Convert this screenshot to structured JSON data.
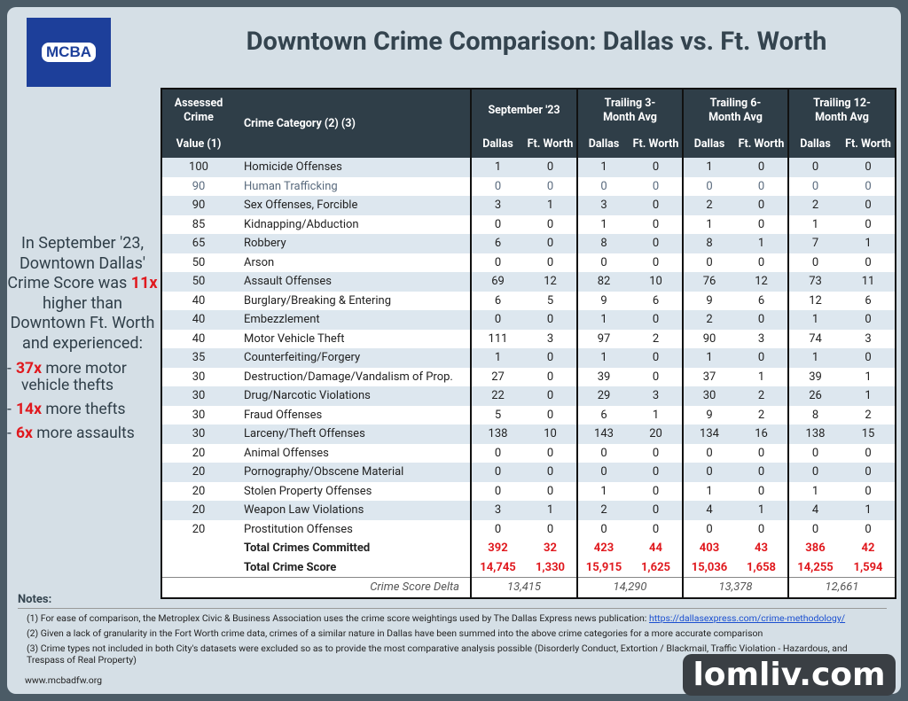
{
  "logo": "MCBA",
  "title": "Downtown Crime Comparison: Dallas vs. Ft. Worth",
  "summary": {
    "before": "In September '23, Downtown Dallas' Crime Score was",
    "highlight": "11x",
    "after": "higher than Downtown Ft. Worth and experienced:",
    "bullets": [
      {
        "marker": "-",
        "highlight": "37x",
        "text": "more motor vehicle thefts"
      },
      {
        "marker": "-",
        "highlight": "14x",
        "text": "more thefts"
      },
      {
        "marker": "-",
        "highlight": "6x",
        "text": "more assaults"
      }
    ]
  },
  "table": {
    "value_header": [
      "Assessed Crime",
      "Value (1)"
    ],
    "category_header": "Crime Category (2) (3)",
    "periods": [
      "September '23",
      "Trailing 3-Month Avg",
      "Trailing 6-Month Avg",
      "Trailing 12-Month Avg"
    ],
    "cities": [
      "Dallas",
      "Ft. Worth"
    ],
    "rows": [
      {
        "value": 100,
        "category": "Homicide Offenses",
        "counts": [
          1,
          0,
          1,
          0,
          1,
          0,
          0,
          0
        ]
      },
      {
        "value": 90,
        "category": "Human Trafficking",
        "counts": [
          0,
          0,
          0,
          0,
          0,
          0,
          0,
          0
        ]
      },
      {
        "value": 90,
        "category": "Sex Offenses, Forcible",
        "counts": [
          3,
          1,
          3,
          0,
          2,
          0,
          2,
          0
        ]
      },
      {
        "value": 85,
        "category": "Kidnapping/Abduction",
        "counts": [
          0,
          0,
          1,
          0,
          1,
          0,
          1,
          0
        ]
      },
      {
        "value": 65,
        "category": "Robbery",
        "counts": [
          6,
          0,
          8,
          0,
          8,
          1,
          7,
          1
        ]
      },
      {
        "value": 50,
        "category": "Arson",
        "counts": [
          0,
          0,
          0,
          0,
          0,
          0,
          0,
          0
        ]
      },
      {
        "value": 50,
        "category": "Assault Offenses",
        "counts": [
          69,
          12,
          82,
          10,
          76,
          12,
          73,
          11
        ]
      },
      {
        "value": 40,
        "category": "Burglary/Breaking & Entering",
        "counts": [
          6,
          5,
          9,
          6,
          9,
          6,
          12,
          6
        ]
      },
      {
        "value": 40,
        "category": "Embezzlement",
        "counts": [
          0,
          0,
          1,
          0,
          2,
          0,
          1,
          0
        ]
      },
      {
        "value": 40,
        "category": "Motor Vehicle Theft",
        "counts": [
          111,
          3,
          97,
          2,
          90,
          3,
          74,
          3
        ]
      },
      {
        "value": 35,
        "category": "Counterfeiting/Forgery",
        "counts": [
          1,
          0,
          1,
          0,
          1,
          0,
          1,
          0
        ]
      },
      {
        "value": 30,
        "category": "Destruction/Damage/Vandalism of Prop.",
        "counts": [
          27,
          0,
          39,
          0,
          37,
          1,
          39,
          1
        ]
      },
      {
        "value": 30,
        "category": "Drug/Narcotic Violations",
        "counts": [
          22,
          0,
          29,
          3,
          30,
          2,
          26,
          1
        ]
      },
      {
        "value": 30,
        "category": "Fraud Offenses",
        "counts": [
          5,
          0,
          6,
          1,
          9,
          2,
          8,
          2
        ]
      },
      {
        "value": 30,
        "category": "Larceny/Theft Offenses",
        "counts": [
          138,
          10,
          143,
          20,
          134,
          16,
          138,
          15
        ]
      },
      {
        "value": 20,
        "category": "Animal Offenses",
        "counts": [
          0,
          0,
          0,
          0,
          0,
          0,
          0,
          0
        ]
      },
      {
        "value": 20,
        "category": "Pornography/Obscene Material",
        "counts": [
          0,
          0,
          0,
          0,
          0,
          0,
          0,
          0
        ]
      },
      {
        "value": 20,
        "category": "Stolen Property Offenses",
        "counts": [
          0,
          0,
          1,
          0,
          1,
          0,
          1,
          0
        ]
      },
      {
        "value": 20,
        "category": "Weapon Law Violations",
        "counts": [
          3,
          1,
          2,
          0,
          4,
          1,
          4,
          1
        ]
      },
      {
        "value": 20,
        "category": "Prostitution Offenses",
        "counts": [
          0,
          0,
          0,
          0,
          0,
          0,
          0,
          0
        ]
      }
    ],
    "totals": [
      {
        "label": "Total Crimes Committed",
        "values": [
          392,
          32,
          423,
          44,
          403,
          43,
          386,
          42
        ]
      },
      {
        "label": "Total Crime Score",
        "values": [
          "14,745",
          "1,330",
          "15,915",
          "1,625",
          "15,036",
          "1,658",
          "14,255",
          "1,594"
        ]
      }
    ],
    "delta": {
      "label": "Crime Score Delta",
      "values": [
        "13,415",
        "14,290",
        "13,378",
        "12,661"
      ]
    }
  },
  "notes": {
    "title": "Notes:",
    "items": [
      {
        "text": "(1) For ease of comparison, the Metroplex Civic & Business Association uses the crime score weightings used by The Dallas Express news publication:",
        "link": "https://dallasexpress.com/crime-methodology/"
      },
      {
        "text": "(2) Given a lack of granularity in the Fort Worth crime data, crimes of a similar nature in Dallas have been summed into the above crime categories for a more accurate comparison"
      },
      {
        "text": "(3) Crime types not included in both City's datasets were excluded so as to provide the most comparative analysis possible (Disorderly Conduct, Extortion / Blackmail, Traffic Violation - Hazardous, and Trespass of Real Property)"
      }
    ]
  },
  "footer": "www.mcbadfw.org",
  "watermark": "lomliv.com"
}
